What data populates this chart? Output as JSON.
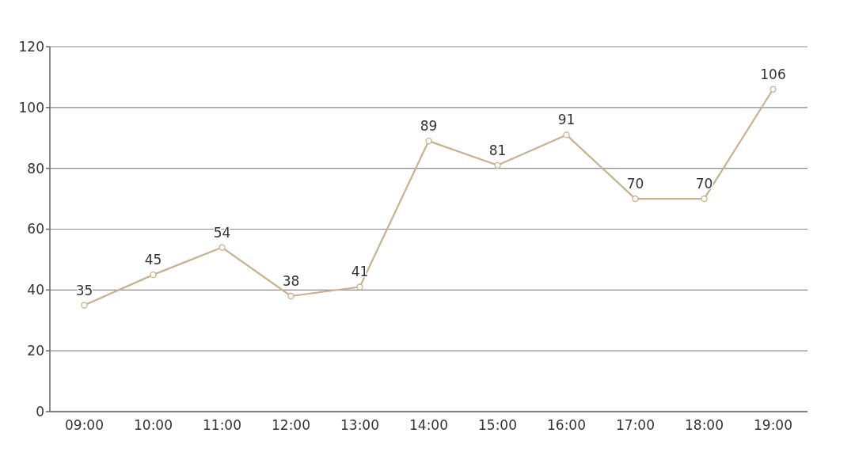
{
  "chart_data": {
    "type": "line",
    "categories": [
      "09:00",
      "10:00",
      "11:00",
      "12:00",
      "13:00",
      "14:00",
      "15:00",
      "16:00",
      "17:00",
      "18:00",
      "19:00"
    ],
    "series": [
      {
        "color": "#c8b190",
        "values": [
          35,
          45,
          54,
          38,
          41,
          89,
          81,
          91,
          70,
          70,
          106
        ]
      }
    ],
    "ylim": [
      0,
      120
    ],
    "yticks": [
      0,
      20,
      40,
      60,
      80,
      100,
      120
    ],
    "grid": "y",
    "marker": "circle",
    "line_style": "solid",
    "data_labels": true
  }
}
